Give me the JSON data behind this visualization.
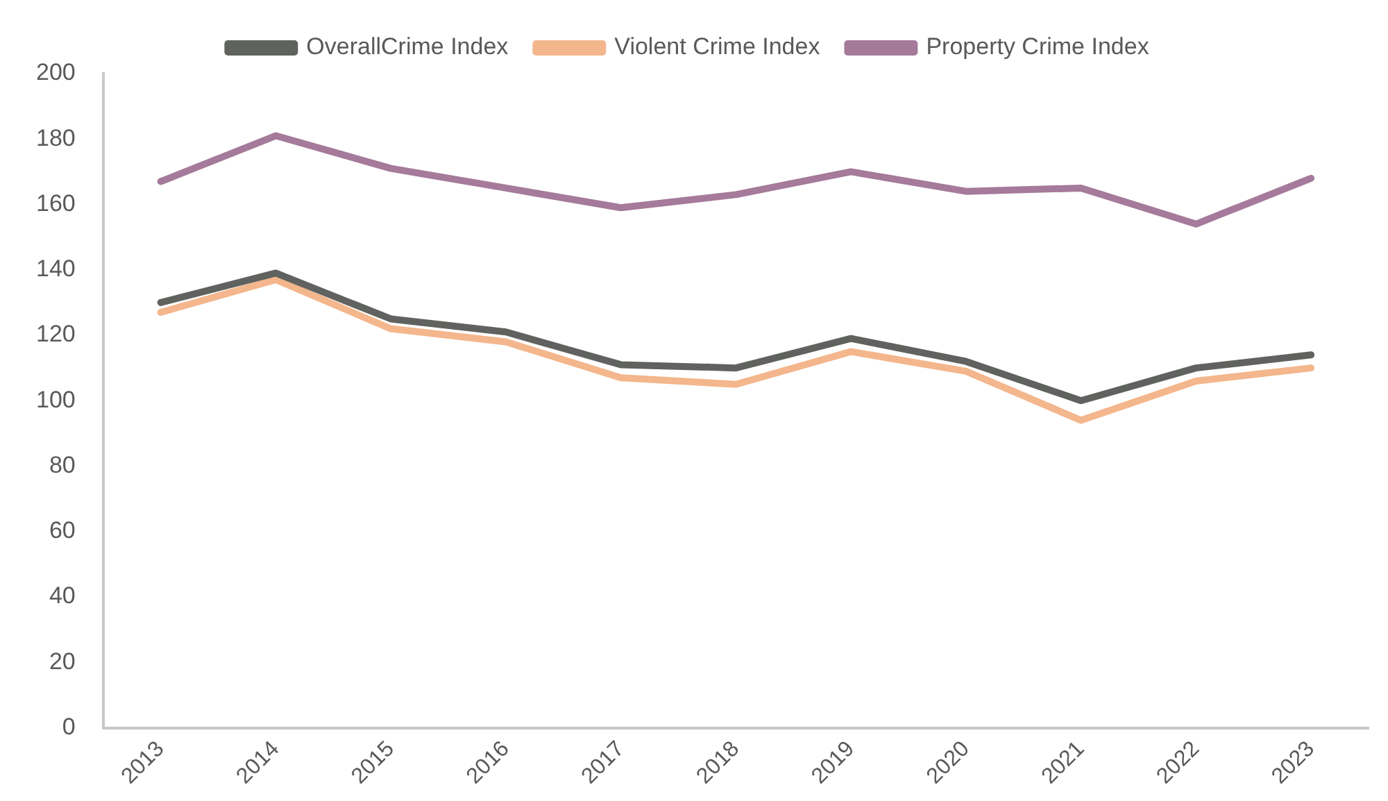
{
  "chart_data": {
    "type": "line",
    "categories": [
      "2013",
      "2014",
      "2015",
      "2016",
      "2017",
      "2018",
      "2019",
      "2020",
      "2021",
      "2022",
      "2023"
    ],
    "series": [
      {
        "name": "OverallCrime Index",
        "color": "#60625f",
        "values": [
          130,
          139,
          125,
          121,
          111,
          110,
          119,
          112,
          100,
          110,
          114
        ]
      },
      {
        "name": "Violent Crime Index",
        "color": "#f4b68c",
        "values": [
          127,
          137,
          122,
          118,
          107,
          105,
          115,
          109,
          94,
          106,
          110
        ]
      },
      {
        "name": "Property Crime Index",
        "color": "#a57a9a",
        "values": [
          167,
          181,
          171,
          165,
          159,
          163,
          170,
          164,
          165,
          154,
          168
        ]
      }
    ],
    "ylim": [
      0,
      200
    ],
    "yticks": [
      0,
      20,
      40,
      60,
      80,
      100,
      120,
      140,
      160,
      180,
      200
    ],
    "grid": false,
    "legend": "top",
    "marker": "none",
    "line_style": "solid"
  }
}
